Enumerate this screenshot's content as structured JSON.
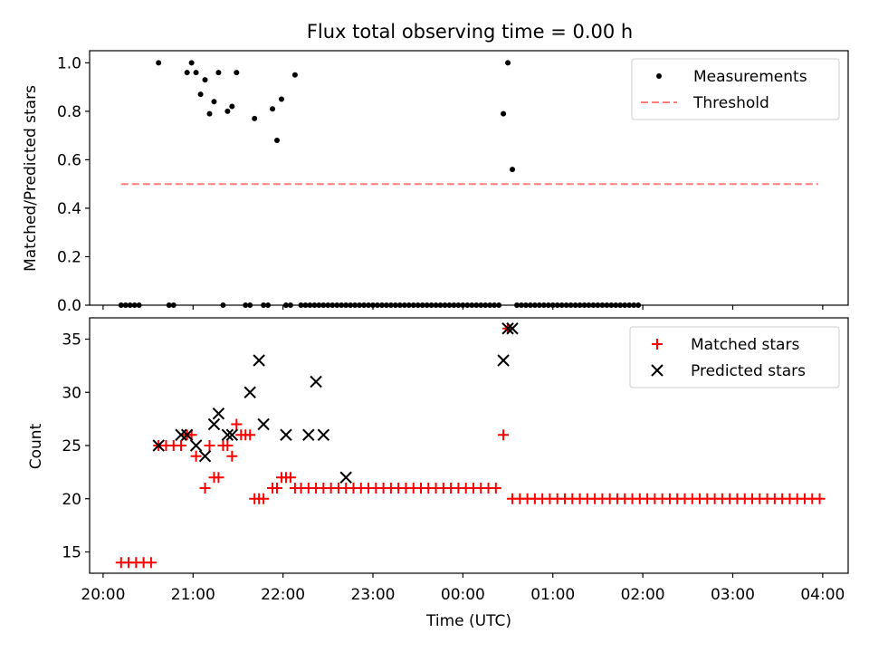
{
  "title": "Flux total observing time = 0.00 h",
  "chart_data": [
    {
      "type": "scatter",
      "title": "Flux total observing time = 0.00 h",
      "xlabel": "",
      "ylabel": "Matched/Predicted stars",
      "xlim": [
        "19:51",
        "04:17"
      ],
      "ylim": [
        0.0,
        1.05
      ],
      "yticks": [
        "0.0",
        "0.2",
        "0.4",
        "0.6",
        "0.8",
        "1.0"
      ],
      "ytick_values": [
        0.0,
        0.2,
        0.4,
        0.6,
        0.8,
        1.0
      ],
      "legend_position": "top-right",
      "series": [
        {
          "name": "Measurements",
          "marker": "dot",
          "color": "#000000",
          "points": [
            [
              "20:12",
              0
            ],
            [
              "20:15",
              0
            ],
            [
              "20:18",
              0
            ],
            [
              "20:21",
              0
            ],
            [
              "20:24",
              0
            ],
            [
              "20:37",
              1.0
            ],
            [
              "20:44",
              0
            ],
            [
              "20:47",
              0
            ],
            [
              "20:56",
              0.96
            ],
            [
              "20:59",
              1.0
            ],
            [
              "21:02",
              0.96
            ],
            [
              "21:05",
              0.87
            ],
            [
              "21:08",
              0.93
            ],
            [
              "21:11",
              0.79
            ],
            [
              "21:14",
              0.84
            ],
            [
              "21:17",
              0.96
            ],
            [
              "21:20",
              0
            ],
            [
              "21:23",
              0.8
            ],
            [
              "21:26",
              0.82
            ],
            [
              "21:29",
              0.96
            ],
            [
              "21:35",
              0
            ],
            [
              "21:38",
              0
            ],
            [
              "21:41",
              0.77
            ],
            [
              "21:47",
              0
            ],
            [
              "21:50",
              0
            ],
            [
              "21:53",
              0.81
            ],
            [
              "21:56",
              0.68
            ],
            [
              "21:59",
              0.85
            ],
            [
              "22:02",
              0
            ],
            [
              "22:05",
              0
            ],
            [
              "22:08",
              0.95
            ],
            [
              "22:12",
              0
            ],
            [
              "22:15",
              0
            ],
            [
              "22:18",
              0
            ],
            [
              "22:21",
              0
            ],
            [
              "22:24",
              0
            ],
            [
              "22:27",
              0
            ],
            [
              "22:30",
              0
            ],
            [
              "22:33",
              0
            ],
            [
              "22:36",
              0
            ],
            [
              "22:39",
              0
            ],
            [
              "22:42",
              0
            ],
            [
              "22:45",
              0
            ],
            [
              "22:48",
              0
            ],
            [
              "22:51",
              0
            ],
            [
              "22:54",
              0
            ],
            [
              "22:57",
              0
            ],
            [
              "23:00",
              0
            ],
            [
              "23:03",
              0
            ],
            [
              "23:06",
              0
            ],
            [
              "23:09",
              0
            ],
            [
              "23:12",
              0
            ],
            [
              "23:15",
              0
            ],
            [
              "23:18",
              0
            ],
            [
              "23:21",
              0
            ],
            [
              "23:24",
              0
            ],
            [
              "23:27",
              0
            ],
            [
              "23:30",
              0
            ],
            [
              "23:33",
              0
            ],
            [
              "23:36",
              0
            ],
            [
              "23:39",
              0
            ],
            [
              "23:42",
              0
            ],
            [
              "23:45",
              0
            ],
            [
              "23:48",
              0
            ],
            [
              "23:51",
              0
            ],
            [
              "23:54",
              0
            ],
            [
              "23:57",
              0
            ],
            [
              "00:00",
              0
            ],
            [
              "00:03",
              0
            ],
            [
              "00:06",
              0
            ],
            [
              "00:09",
              0
            ],
            [
              "00:12",
              0
            ],
            [
              "00:15",
              0
            ],
            [
              "00:18",
              0
            ],
            [
              "00:21",
              0
            ],
            [
              "00:24",
              0
            ],
            [
              "00:27",
              0.79
            ],
            [
              "00:30",
              1.0
            ],
            [
              "00:33",
              0.56
            ],
            [
              "00:36",
              0
            ],
            [
              "00:39",
              0
            ],
            [
              "00:42",
              0
            ],
            [
              "00:45",
              0
            ],
            [
              "00:48",
              0
            ],
            [
              "00:51",
              0
            ],
            [
              "00:54",
              0
            ],
            [
              "00:57",
              0
            ],
            [
              "01:00",
              0
            ],
            [
              "01:03",
              0
            ],
            [
              "01:06",
              0
            ],
            [
              "01:09",
              0
            ],
            [
              "01:12",
              0
            ],
            [
              "01:15",
              0
            ],
            [
              "01:18",
              0
            ],
            [
              "01:21",
              0
            ],
            [
              "01:24",
              0
            ],
            [
              "01:27",
              0
            ],
            [
              "01:30",
              0
            ],
            [
              "01:33",
              0
            ],
            [
              "01:36",
              0
            ],
            [
              "01:39",
              0
            ],
            [
              "01:42",
              0
            ],
            [
              "01:45",
              0
            ],
            [
              "01:48",
              0
            ],
            [
              "01:51",
              0
            ],
            [
              "01:54",
              0
            ],
            [
              "01:57",
              0
            ]
          ]
        },
        {
          "name": "Threshold",
          "marker": "dashed-line",
          "color": "#ff7f7f",
          "points": [
            [
              "20:12",
              0.5
            ],
            [
              "03:57",
              0.5
            ]
          ]
        }
      ]
    },
    {
      "type": "scatter",
      "title": "",
      "xlabel": "Time (UTC)",
      "ylabel": "Count",
      "xlim": [
        "19:51",
        "04:17"
      ],
      "ylim": [
        13,
        37
      ],
      "yticks": [
        "15",
        "20",
        "25",
        "30",
        "35"
      ],
      "ytick_values": [
        15,
        20,
        25,
        30,
        35
      ],
      "xticks": [
        "20:00",
        "21:00",
        "22:00",
        "23:00",
        "00:00",
        "01:00",
        "02:00",
        "03:00",
        "04:00"
      ],
      "legend_position": "top-right",
      "series": [
        {
          "name": "Matched stars",
          "marker": "plus",
          "color": "#ff0000",
          "points": [
            [
              "20:12",
              14
            ],
            [
              "20:17",
              14
            ],
            [
              "20:22",
              14
            ],
            [
              "20:27",
              14
            ],
            [
              "20:32",
              14
            ],
            [
              "20:37",
              25
            ],
            [
              "20:42",
              25
            ],
            [
              "20:47",
              25
            ],
            [
              "20:52",
              25
            ],
            [
              "20:56",
              26
            ],
            [
              "20:59",
              26
            ],
            [
              "21:02",
              24
            ],
            [
              "21:08",
              21
            ],
            [
              "21:11",
              25
            ],
            [
              "21:14",
              22
            ],
            [
              "21:17",
              22
            ],
            [
              "21:20",
              25
            ],
            [
              "21:23",
              25
            ],
            [
              "21:26",
              24
            ],
            [
              "21:29",
              27
            ],
            [
              "21:32",
              26
            ],
            [
              "21:35",
              26
            ],
            [
              "21:38",
              26
            ],
            [
              "21:41",
              20
            ],
            [
              "21:44",
              20
            ],
            [
              "21:47",
              20
            ],
            [
              "21:53",
              21
            ],
            [
              "21:56",
              21
            ],
            [
              "21:59",
              22
            ],
            [
              "22:02",
              22
            ],
            [
              "22:05",
              22
            ],
            [
              "22:08",
              21
            ],
            [
              "22:12",
              21
            ],
            [
              "22:17",
              21
            ],
            [
              "22:22",
              21
            ],
            [
              "22:27",
              21
            ],
            [
              "22:32",
              21
            ],
            [
              "22:37",
              21
            ],
            [
              "22:42",
              21
            ],
            [
              "22:47",
              21
            ],
            [
              "22:52",
              21
            ],
            [
              "22:57",
              21
            ],
            [
              "23:02",
              21
            ],
            [
              "23:07",
              21
            ],
            [
              "23:12",
              21
            ],
            [
              "23:17",
              21
            ],
            [
              "23:22",
              21
            ],
            [
              "23:27",
              21
            ],
            [
              "23:32",
              21
            ],
            [
              "23:37",
              21
            ],
            [
              "23:42",
              21
            ],
            [
              "23:47",
              21
            ],
            [
              "23:52",
              21
            ],
            [
              "23:57",
              21
            ],
            [
              "00:02",
              21
            ],
            [
              "00:07",
              21
            ],
            [
              "00:12",
              21
            ],
            [
              "00:17",
              21
            ],
            [
              "00:22",
              21
            ],
            [
              "00:27",
              26
            ],
            [
              "00:30",
              36
            ],
            [
              "00:33",
              20
            ],
            [
              "00:38",
              20
            ],
            [
              "00:43",
              20
            ],
            [
              "00:48",
              20
            ],
            [
              "00:53",
              20
            ],
            [
              "00:58",
              20
            ],
            [
              "01:03",
              20
            ],
            [
              "01:08",
              20
            ],
            [
              "01:13",
              20
            ],
            [
              "01:18",
              20
            ],
            [
              "01:23",
              20
            ],
            [
              "01:28",
              20
            ],
            [
              "01:33",
              20
            ],
            [
              "01:38",
              20
            ],
            [
              "01:43",
              20
            ],
            [
              "01:48",
              20
            ],
            [
              "01:53",
              20
            ],
            [
              "01:58",
              20
            ],
            [
              "02:03",
              20
            ],
            [
              "02:08",
              20
            ],
            [
              "02:13",
              20
            ],
            [
              "02:18",
              20
            ],
            [
              "02:23",
              20
            ],
            [
              "02:28",
              20
            ],
            [
              "02:33",
              20
            ],
            [
              "02:38",
              20
            ],
            [
              "02:43",
              20
            ],
            [
              "02:48",
              20
            ],
            [
              "02:53",
              20
            ],
            [
              "02:58",
              20
            ],
            [
              "03:03",
              20
            ],
            [
              "03:08",
              20
            ],
            [
              "03:13",
              20
            ],
            [
              "03:18",
              20
            ],
            [
              "03:23",
              20
            ],
            [
              "03:28",
              20
            ],
            [
              "03:33",
              20
            ],
            [
              "03:38",
              20
            ],
            [
              "03:43",
              20
            ],
            [
              "03:48",
              20
            ],
            [
              "03:53",
              20
            ],
            [
              "03:58",
              20
            ]
          ]
        },
        {
          "name": "Predicted stars",
          "marker": "x",
          "color": "#000000",
          "points": [
            [
              "20:37",
              25
            ],
            [
              "20:52",
              26
            ],
            [
              "20:56",
              26
            ],
            [
              "21:02",
              25
            ],
            [
              "21:08",
              24
            ],
            [
              "21:14",
              27
            ],
            [
              "21:17",
              28
            ],
            [
              "21:23",
              26
            ],
            [
              "21:26",
              26
            ],
            [
              "21:38",
              30
            ],
            [
              "21:44",
              33
            ],
            [
              "21:47",
              27
            ],
            [
              "22:02",
              26
            ],
            [
              "22:17",
              26
            ],
            [
              "22:22",
              31
            ],
            [
              "22:27",
              26
            ],
            [
              "22:42",
              22
            ],
            [
              "00:27",
              33
            ],
            [
              "00:30",
              36
            ],
            [
              "00:33",
              36
            ]
          ]
        }
      ]
    }
  ]
}
